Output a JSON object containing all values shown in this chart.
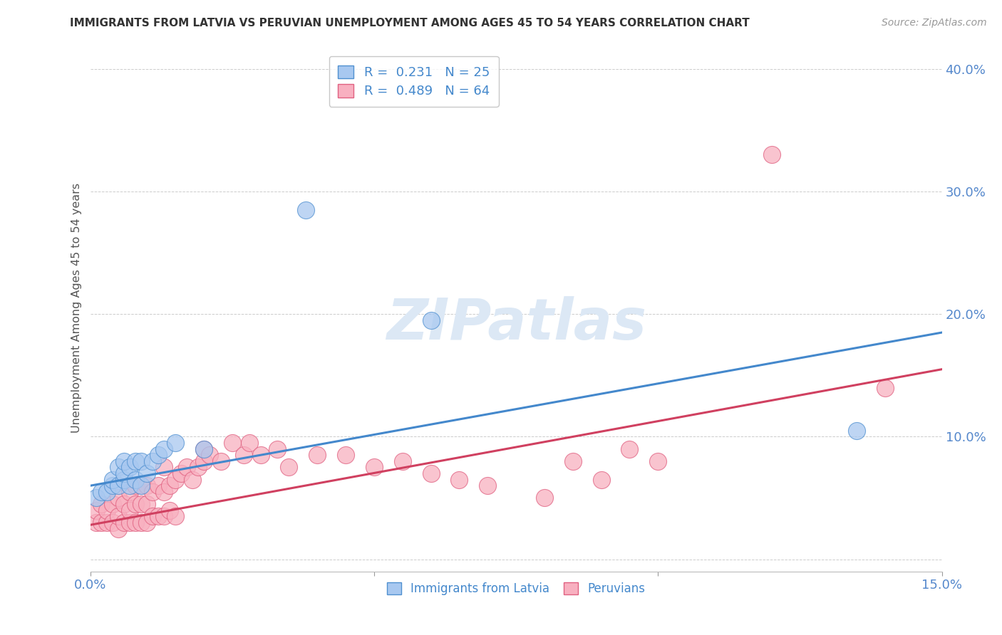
{
  "title": "IMMIGRANTS FROM LATVIA VS PERUVIAN UNEMPLOYMENT AMONG AGES 45 TO 54 YEARS CORRELATION CHART",
  "source": "Source: ZipAtlas.com",
  "ylabel": "Unemployment Among Ages 45 to 54 years",
  "xlim": [
    0.0,
    0.15
  ],
  "ylim": [
    -0.01,
    0.42
  ],
  "xticks": [
    0.0,
    0.05,
    0.1,
    0.15
  ],
  "xtick_labels": [
    "0.0%",
    "",
    "",
    "15.0%"
  ],
  "ytick_labels": [
    "",
    "10.0%",
    "20.0%",
    "30.0%",
    "40.0%"
  ],
  "yticks": [
    0.0,
    0.1,
    0.2,
    0.3,
    0.4
  ],
  "blue_R": 0.231,
  "blue_N": 25,
  "pink_R": 0.489,
  "pink_N": 64,
  "blue_color": "#a8c8f0",
  "pink_color": "#f8b0c0",
  "blue_edge_color": "#5090d0",
  "pink_edge_color": "#e06080",
  "blue_line_color": "#4488cc",
  "pink_line_color": "#d04060",
  "legend_label_blue": "Immigrants from Latvia",
  "legend_label_pink": "Peruvians",
  "blue_scatter_x": [
    0.001,
    0.002,
    0.003,
    0.004,
    0.004,
    0.005,
    0.005,
    0.006,
    0.006,
    0.006,
    0.007,
    0.007,
    0.008,
    0.008,
    0.009,
    0.009,
    0.01,
    0.011,
    0.012,
    0.013,
    0.015,
    0.02,
    0.038,
    0.06,
    0.135
  ],
  "blue_scatter_y": [
    0.05,
    0.055,
    0.055,
    0.06,
    0.065,
    0.06,
    0.075,
    0.065,
    0.07,
    0.08,
    0.06,
    0.075,
    0.065,
    0.08,
    0.06,
    0.08,
    0.07,
    0.08,
    0.085,
    0.09,
    0.095,
    0.09,
    0.285,
    0.195,
    0.105
  ],
  "pink_scatter_x": [
    0.001,
    0.001,
    0.002,
    0.002,
    0.003,
    0.003,
    0.004,
    0.004,
    0.005,
    0.005,
    0.005,
    0.006,
    0.006,
    0.007,
    0.007,
    0.007,
    0.008,
    0.008,
    0.008,
    0.009,
    0.009,
    0.009,
    0.01,
    0.01,
    0.01,
    0.011,
    0.011,
    0.012,
    0.012,
    0.013,
    0.013,
    0.013,
    0.014,
    0.014,
    0.015,
    0.015,
    0.016,
    0.017,
    0.018,
    0.019,
    0.02,
    0.02,
    0.021,
    0.023,
    0.025,
    0.027,
    0.028,
    0.03,
    0.033,
    0.035,
    0.04,
    0.045,
    0.05,
    0.055,
    0.06,
    0.065,
    0.07,
    0.08,
    0.085,
    0.09,
    0.095,
    0.1,
    0.12,
    0.14
  ],
  "pink_scatter_y": [
    0.03,
    0.04,
    0.03,
    0.045,
    0.03,
    0.04,
    0.03,
    0.045,
    0.025,
    0.035,
    0.05,
    0.03,
    0.045,
    0.03,
    0.04,
    0.055,
    0.03,
    0.045,
    0.06,
    0.03,
    0.045,
    0.06,
    0.03,
    0.045,
    0.06,
    0.035,
    0.055,
    0.035,
    0.06,
    0.035,
    0.055,
    0.075,
    0.04,
    0.06,
    0.035,
    0.065,
    0.07,
    0.075,
    0.065,
    0.075,
    0.08,
    0.09,
    0.085,
    0.08,
    0.095,
    0.085,
    0.095,
    0.085,
    0.09,
    0.075,
    0.085,
    0.085,
    0.075,
    0.08,
    0.07,
    0.065,
    0.06,
    0.05,
    0.08,
    0.065,
    0.09,
    0.08,
    0.33,
    0.14
  ],
  "blue_line_x0": 0.0,
  "blue_line_y0": 0.06,
  "blue_line_x1": 0.15,
  "blue_line_y1": 0.185,
  "pink_line_x0": 0.0,
  "pink_line_y0": 0.028,
  "pink_line_x1": 0.15,
  "pink_line_y1": 0.155
}
